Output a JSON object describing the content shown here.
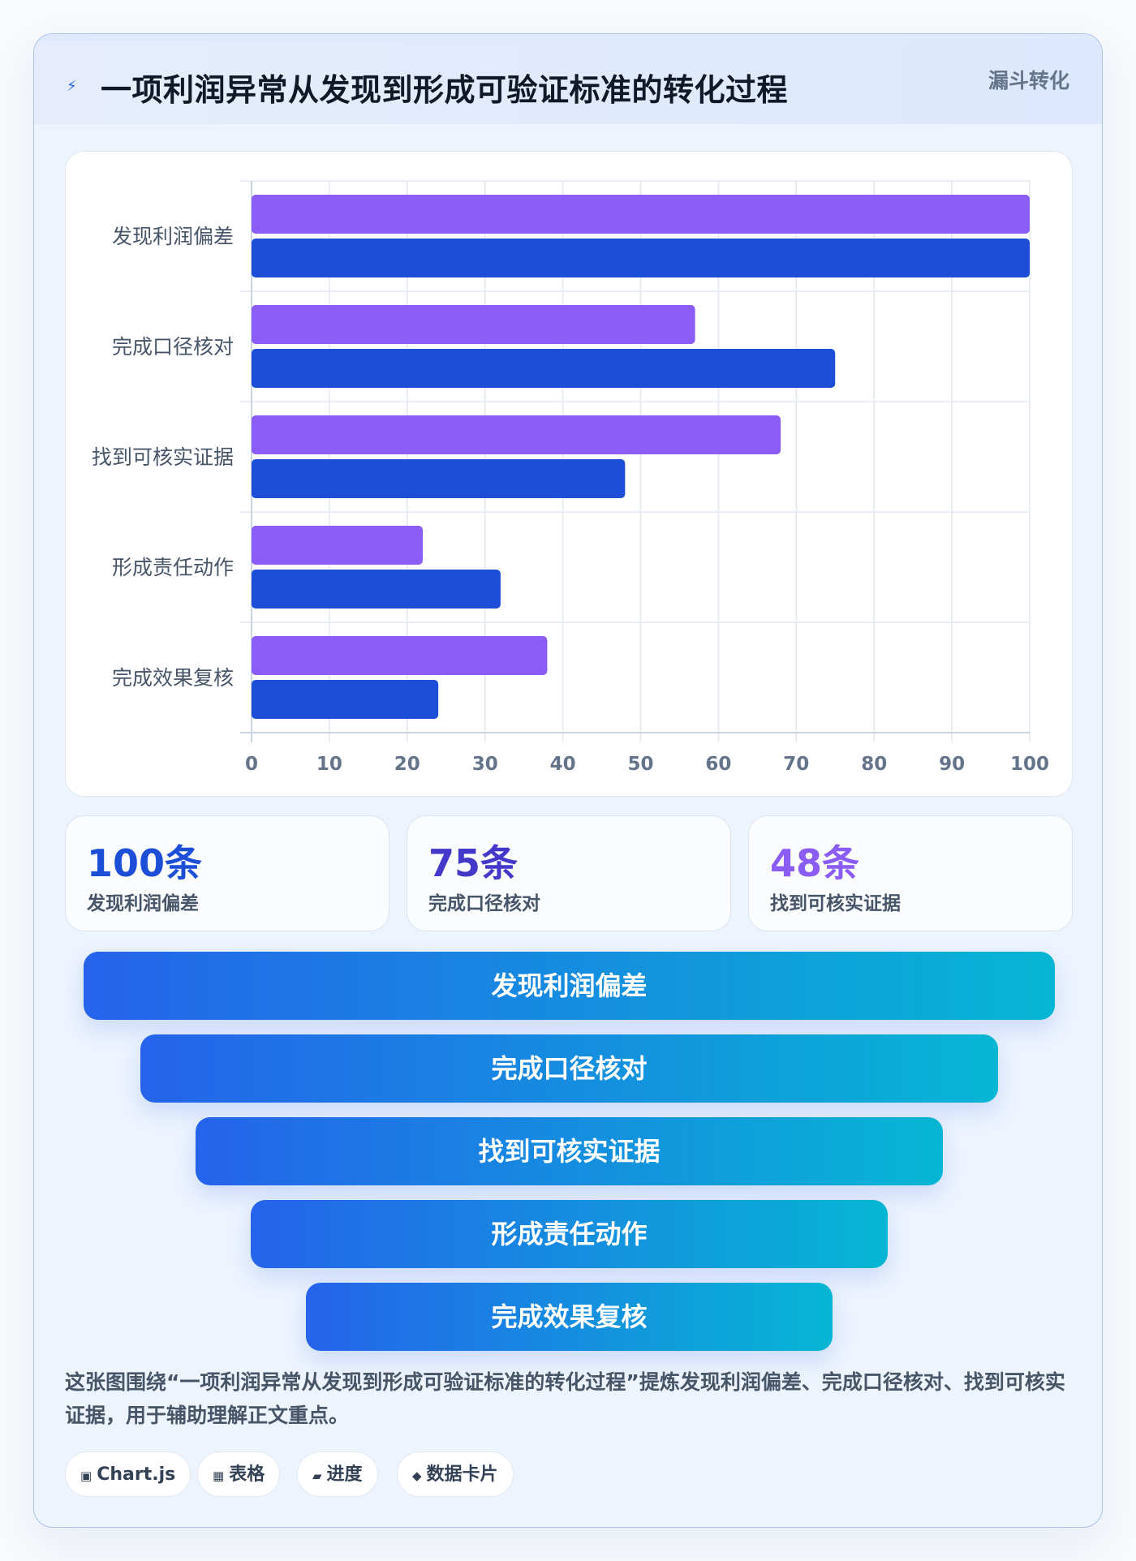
{
  "header": {
    "title": "一项利润异常从发现到形成可验证标准的转化过程",
    "badge": "漏斗转化",
    "icon": "bolt-icon"
  },
  "chart_data": {
    "type": "bar",
    "orientation": "horizontal",
    "categories": [
      "发现利润偏差",
      "完成口径核对",
      "找到可核实证据",
      "形成责任动作",
      "完成效果复核"
    ],
    "series": [
      {
        "values": [
          100,
          57,
          68,
          22,
          38
        ],
        "color": "#8b5cf6"
      },
      {
        "values": [
          100,
          75,
          48,
          32,
          24
        ],
        "color": "#1d4ed8"
      }
    ],
    "xlim": [
      0,
      100
    ],
    "xticks": [
      0,
      10,
      20,
      30,
      40,
      50,
      60,
      70,
      80,
      90,
      100
    ],
    "grid": true,
    "legend": "none"
  },
  "stats": [
    {
      "value": "100条",
      "label": "发现利润偏差",
      "color": "#1d4ed8"
    },
    {
      "value": "75条",
      "label": "完成口径核对",
      "color": "#4338ca"
    },
    {
      "value": "48条",
      "label": "找到可核实证据",
      "color": "#8b5cf6"
    }
  ],
  "funnel": [
    "发现利润偏差",
    "完成口径核对",
    "找到可核实证据",
    "形成责任动作",
    "完成效果复核"
  ],
  "description": "这张图围绕“一项利润异常从发现到形成可验证标准的转化过程”提炼发现利润偏差、完成口径核对、找到可核实证据，用于辅助理解正文重点。",
  "chips": [
    {
      "icon": "chip-box-icon",
      "glyph": "▣",
      "label": "Chart.js"
    },
    {
      "icon": "table-grid-icon",
      "glyph": "▦",
      "label": "表格"
    },
    {
      "icon": "progress-bar-icon",
      "glyph": "▰",
      "label": "进度"
    },
    {
      "icon": "diamond-icon",
      "glyph": "◆",
      "label": "数据卡片"
    }
  ]
}
